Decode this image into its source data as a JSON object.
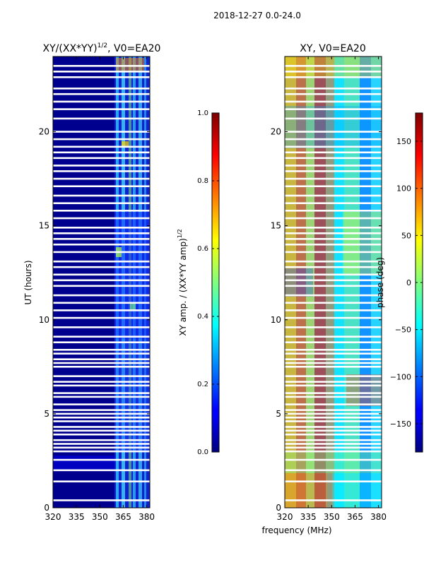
{
  "figure": {
    "suptitle": "2018-12-27 0.0-24.0",
    "xlabel": "frequency (MHz)"
  },
  "chart_data": [
    {
      "type": "heatmap",
      "title_main": "XY/(XX*YY)",
      "title_sup": "1/2",
      "title_rest": ", V0=EA20",
      "xlabel": "",
      "ylabel": "UT (hours)",
      "xlim": [
        320,
        382
      ],
      "ylim": [
        0,
        24
      ],
      "xticks": [
        "320",
        "335",
        "350",
        "365",
        "380"
      ],
      "xtick_values": [
        320,
        335,
        350,
        365,
        380
      ],
      "yticks": [
        "0",
        "5",
        "10",
        "15",
        "20"
      ],
      "ytick_values": [
        0,
        5,
        10,
        15,
        20
      ],
      "colorbar": {
        "label_main": "XY amp. / (XX*YY amp)",
        "label_sup": "1/2",
        "range": [
          0,
          1
        ],
        "ticks": [
          "0.0",
          "0.2",
          "0.4",
          "0.6",
          "0.8",
          "1.0"
        ],
        "tick_values": [
          0.0,
          0.2,
          0.4,
          0.6,
          0.8,
          1.0
        ]
      },
      "blank_hours": [
        0.4,
        1.4,
        2.0,
        2.55,
        3.0,
        3.2,
        3.4,
        3.6,
        3.9,
        4.1,
        4.3,
        4.6,
        4.8,
        5.0,
        5.2,
        5.5,
        5.9,
        6.1,
        6.5,
        6.7,
        7.0,
        7.5,
        7.7,
        7.9,
        8.2,
        8.4,
        8.8,
        9.1,
        9.6,
        10.1,
        10.5,
        10.9,
        11.3,
        11.8,
        12.1,
        12.4,
        12.8,
        13.1,
        13.6,
        14.0,
        14.3,
        14.6,
        14.9,
        15.4,
        15.8,
        16.2,
        16.6,
        17.1,
        17.5,
        17.9,
        18.2,
        18.6,
        18.9,
        19.2,
        19.6,
        20.0,
        20.7,
        21.2,
        21.6,
        22.0,
        22.3,
        22.9,
        23.2,
        23.5
      ]
    },
    {
      "type": "heatmap",
      "title_main": "XY, V0=EA20",
      "title_sup": "",
      "title_rest": "",
      "xlabel": "",
      "ylabel": "",
      "xlim": [
        320,
        382
      ],
      "ylim": [
        0,
        24
      ],
      "xticks": [
        "320",
        "335",
        "350",
        "365",
        "380"
      ],
      "xtick_values": [
        320,
        335,
        350,
        365,
        380
      ],
      "yticks": [
        "0",
        "5",
        "10",
        "15",
        "20"
      ],
      "ytick_values": [
        0,
        5,
        10,
        15,
        20
      ],
      "colorbar": {
        "label_main": "phase (deg)",
        "label_sup": "",
        "range": [
          -180,
          180
        ],
        "ticks": [
          "−150",
          "−100",
          "−50",
          "0",
          "50",
          "100",
          "150"
        ],
        "tick_values": [
          -150,
          -100,
          -50,
          0,
          50,
          100,
          150
        ]
      },
      "blank_hours": [
        0.4,
        1.4,
        2.0,
        2.55,
        3.0,
        3.2,
        3.4,
        3.6,
        3.9,
        4.1,
        4.3,
        4.6,
        4.8,
        5.0,
        5.2,
        5.5,
        5.9,
        6.1,
        6.5,
        6.7,
        7.0,
        7.5,
        7.7,
        7.9,
        8.2,
        8.4,
        8.8,
        9.1,
        9.6,
        10.1,
        10.5,
        10.9,
        11.3,
        11.8,
        12.1,
        12.4,
        12.8,
        13.1,
        13.6,
        14.0,
        14.3,
        14.6,
        14.9,
        15.4,
        15.8,
        16.2,
        16.6,
        17.1,
        17.5,
        17.9,
        18.2,
        18.6,
        18.9,
        19.2,
        19.6,
        20.0,
        20.7,
        21.2,
        21.6,
        22.0,
        22.3,
        22.9,
        23.2,
        23.5
      ]
    }
  ]
}
